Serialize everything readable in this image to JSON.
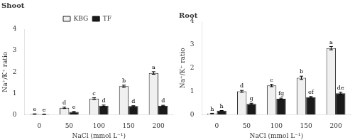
{
  "chart_data": [
    {
      "type": "bar",
      "title": "Shoot",
      "x_label": "NaCl (mmol L⁻¹)",
      "y_label": "Na⁺/K⁺ ratio",
      "categories": [
        0,
        50,
        100,
        150,
        200
      ],
      "series": [
        {
          "name": "KBG",
          "color": "#f0f0f0",
          "values": [
            0.03,
            0.32,
            0.75,
            1.33,
            1.95
          ],
          "errors": [
            0.01,
            0.03,
            0.04,
            0.05,
            0.06
          ],
          "annotations": [
            "e",
            "d",
            "c",
            "b",
            "a"
          ]
        },
        {
          "name": "TF",
          "color": "#1a1a1a",
          "values": [
            0.02,
            0.13,
            0.42,
            0.4,
            0.42
          ],
          "errors": [
            0.005,
            0.02,
            0.03,
            0.02,
            0.02
          ],
          "annotations": [
            "e",
            "e",
            "d",
            "d",
            "d"
          ]
        }
      ],
      "ylim": [
        0,
        4
      ],
      "yticks": [
        0,
        1,
        2,
        3,
        4
      ],
      "grid": false,
      "legend": "top"
    },
    {
      "type": "bar",
      "title": "Root",
      "x_label": "NaCl (mmol L⁻¹)",
      "y_label": "Na⁺/K⁺ ratio",
      "categories": [
        0,
        50,
        100,
        150,
        200
      ],
      "series": [
        {
          "name": "KBG",
          "color": "#f0f0f0",
          "values": [
            0.05,
            1.0,
            1.25,
            1.58,
            2.85
          ],
          "errors": [
            0.01,
            0.04,
            0.05,
            0.07,
            0.07
          ],
          "annotations": [
            "h",
            "d",
            "c",
            "b",
            "a"
          ]
        },
        {
          "name": "TF",
          "color": "#1a1a1a",
          "values": [
            0.17,
            0.46,
            0.68,
            0.75,
            0.92
          ],
          "errors": [
            0.01,
            0.03,
            0.03,
            0.03,
            0.04
          ],
          "annotations": [
            "h",
            "g",
            "fg",
            "ef",
            "de"
          ]
        }
      ],
      "ylim": [
        0,
        4
      ],
      "yticks": [
        0,
        1,
        2,
        3,
        4
      ],
      "grid": false
    }
  ]
}
